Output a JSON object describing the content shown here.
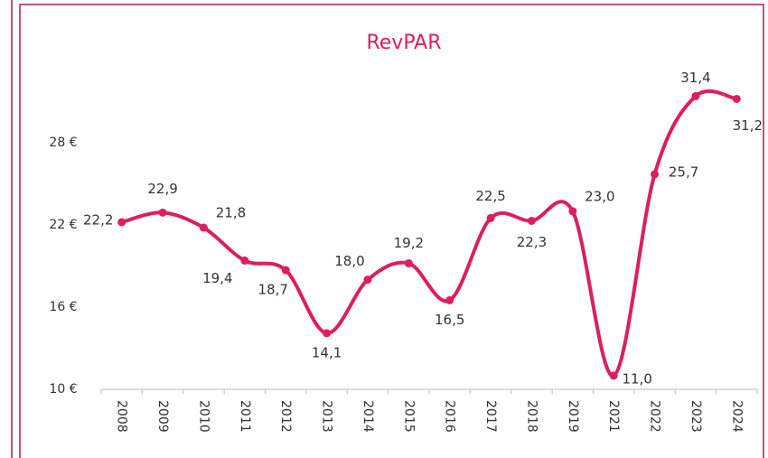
{
  "chart_data": {
    "type": "line",
    "title": "RevPAR",
    "categories": [
      "2008",
      "2009",
      "2010",
      "2011",
      "2012",
      "2013",
      "2014",
      "2015",
      "2016",
      "2017",
      "2018",
      "2019",
      "2021",
      "2022",
      "2023",
      "2024"
    ],
    "series": [
      {
        "name": "RevPAR",
        "color": "#dc1f5a",
        "values": [
          22.2,
          22.9,
          21.8,
          19.4,
          18.7,
          14.1,
          18.0,
          19.2,
          16.5,
          22.5,
          22.3,
          23.0,
          11.0,
          25.7,
          31.4,
          31.2
        ],
        "value_labels": [
          "22,2",
          "22,9",
          "21,8",
          "19,4",
          "18,7",
          "14,1",
          "18,0",
          "19,2",
          "16,5",
          "22,5",
          "22,3",
          "23,0",
          "11,0",
          "25,7",
          "31,4",
          "31,2"
        ]
      }
    ],
    "ylim": [
      10,
      34
    ],
    "yticks": [
      {
        "value": 10,
        "label": "10 €"
      },
      {
        "value": 16,
        "label": "16 €"
      },
      {
        "value": 22,
        "label": "22 €"
      },
      {
        "value": 28,
        "label": "28 €"
      }
    ]
  }
}
